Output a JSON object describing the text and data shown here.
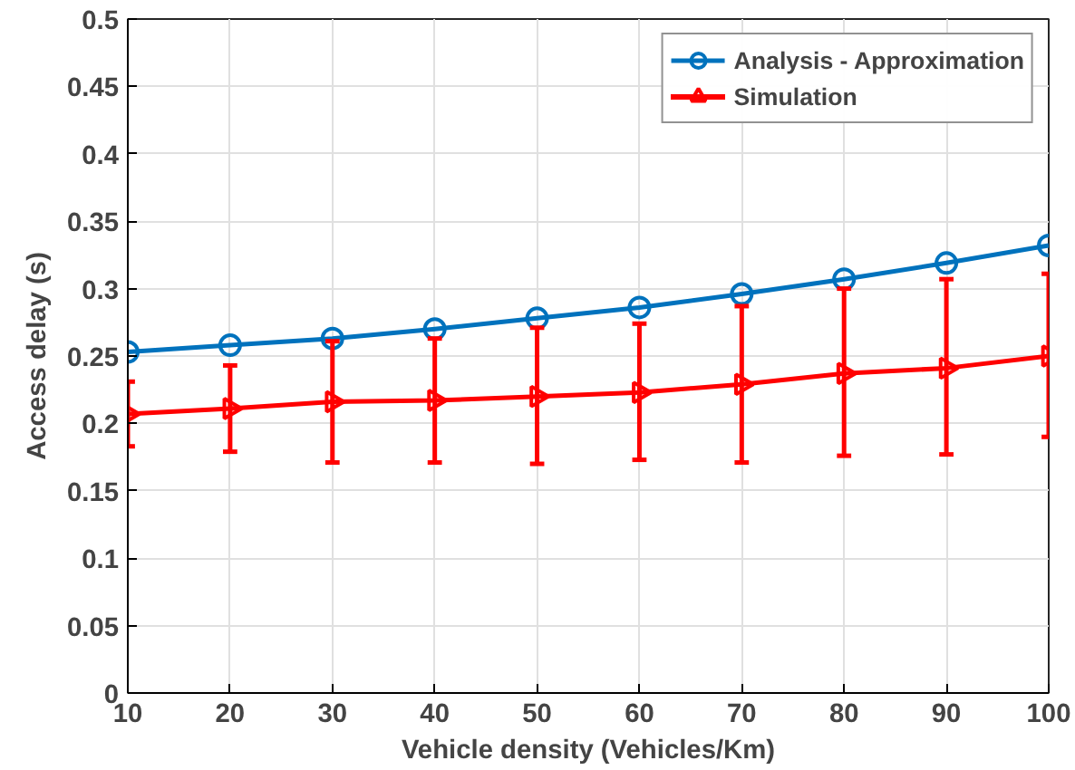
{
  "chart_data": {
    "type": "line",
    "xlabel": "Vehicle density (Vehicles/Km)",
    "ylabel": "Access delay (s)",
    "x": [
      10,
      20,
      30,
      40,
      50,
      60,
      70,
      80,
      90,
      100
    ],
    "series": [
      {
        "name": "Analysis - Approximation",
        "color": "#0072bd",
        "marker": "circle",
        "values": [
          0.253,
          0.258,
          0.263,
          0.27,
          0.278,
          0.286,
          0.296,
          0.307,
          0.319,
          0.332
        ]
      },
      {
        "name": "Simulation",
        "color": "#ff0000",
        "marker": "triangle",
        "values": [
          0.207,
          0.211,
          0.216,
          0.217,
          0.22,
          0.223,
          0.229,
          0.237,
          0.241,
          0.25
        ],
        "errors": [
          [
            0.183,
            0.231
          ],
          [
            0.179,
            0.243
          ],
          [
            0.171,
            0.261
          ],
          [
            0.171,
            0.263
          ],
          [
            0.17,
            0.271
          ],
          [
            0.173,
            0.274
          ],
          [
            0.171,
            0.287
          ],
          [
            0.176,
            0.3
          ],
          [
            0.177,
            0.307
          ],
          [
            0.19,
            0.311
          ]
        ]
      }
    ],
    "xlim": [
      10,
      100
    ],
    "xticks": [
      10,
      20,
      30,
      40,
      50,
      60,
      70,
      80,
      90,
      100
    ],
    "ylim": [
      0,
      0.5
    ],
    "yticks": [
      0,
      0.05,
      0.1,
      0.15,
      0.2,
      0.25,
      0.3,
      0.35,
      0.4,
      0.45,
      0.5
    ],
    "grid": true,
    "legend": "top right",
    "line_style": "solid"
  }
}
